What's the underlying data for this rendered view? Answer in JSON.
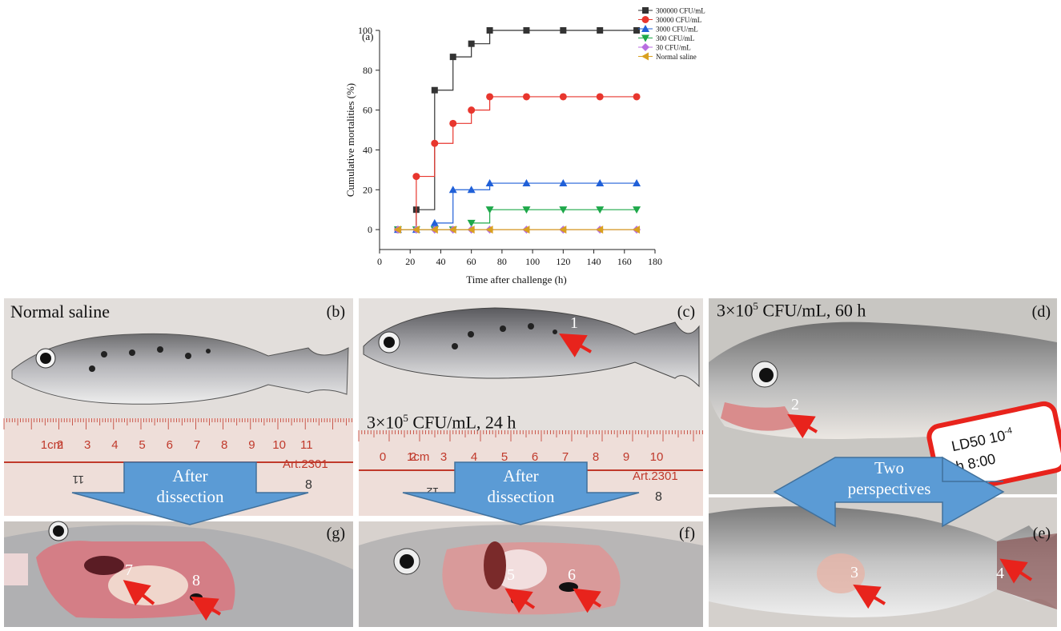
{
  "chart_data": {
    "type": "line",
    "step": true,
    "panel_label": "(a)",
    "xlabel": "Time after challenge (h)",
    "ylabel": "Cumulative mortalities (%)",
    "xlim": [
      0,
      180
    ],
    "ylim": [
      -10,
      100
    ],
    "xticks": [
      0,
      20,
      40,
      60,
      80,
      100,
      120,
      140,
      160,
      180
    ],
    "yticks": [
      0,
      20,
      40,
      60,
      80,
      100
    ],
    "grid": false,
    "legend_position": "top-right",
    "x": [
      12,
      24,
      36,
      48,
      60,
      72,
      96,
      120,
      144,
      168
    ],
    "series": [
      {
        "name": "300000 CFU/mL",
        "color": "#333333",
        "marker": "square",
        "values": [
          0,
          10,
          70,
          86.7,
          93.3,
          100,
          100,
          100,
          100,
          100
        ]
      },
      {
        "name": "30000 CFU/mL",
        "color": "#e8362e",
        "marker": "circle",
        "values": [
          0,
          26.7,
          43.3,
          53.3,
          60,
          66.7,
          66.7,
          66.7,
          66.7,
          66.7
        ]
      },
      {
        "name": "3000 CFU/mL",
        "color": "#2060d8",
        "marker": "triangle-up",
        "values": [
          0,
          0,
          3.3,
          20,
          20,
          23.3,
          23.3,
          23.3,
          23.3,
          23.3
        ]
      },
      {
        "name": "300 CFU/mL",
        "color": "#1ea84a",
        "marker": "triangle-down",
        "values": [
          0,
          0,
          0,
          0,
          3.3,
          10,
          10,
          10,
          10,
          10
        ]
      },
      {
        "name": "30 CFU/mL",
        "color": "#b86ee0",
        "marker": "diamond",
        "values": [
          0,
          0,
          0,
          0,
          0,
          0,
          0,
          0,
          0,
          0
        ]
      },
      {
        "name": "Normal saline",
        "color": "#d9a020",
        "marker": "triangle-left",
        "values": [
          0,
          0,
          0,
          0,
          0,
          0,
          0,
          0,
          0,
          0
        ]
      }
    ]
  },
  "panels": {
    "b": {
      "label": "(b)",
      "caption": "Normal saline"
    },
    "c": {
      "label": "(c)",
      "caption": "3×10",
      "sup": "5",
      "caption_tail": " CFU/mL, 24 h"
    },
    "d": {
      "label": "(d)",
      "caption": "3×10",
      "sup": "5",
      "caption_tail": " CFU/mL, 60 h"
    },
    "e": {
      "label": "(e)"
    },
    "f": {
      "label": "(f)"
    },
    "g": {
      "label": "(g)"
    }
  },
  "arrows": {
    "left": {
      "line1": "After",
      "line2": "dissection"
    },
    "middle": {
      "line1": "After",
      "line2": "dissection"
    },
    "right": {
      "line1": "Two",
      "line2": "perspectives"
    }
  },
  "markers": {
    "m1": "1",
    "m2": "2",
    "m3": "3",
    "m4": "4",
    "m5": "5",
    "m6": "6",
    "m7": "7",
    "m8": "8"
  },
  "ruler": {
    "cm_label": "1cm",
    "numbers_b": [
      "2",
      "3",
      "4",
      "5",
      "6",
      "7",
      "8",
      "9",
      "10",
      "11"
    ],
    "numbers_c": [
      "0",
      "2",
      "3",
      "4",
      "5",
      "6",
      "7",
      "8",
      "9",
      "10"
    ],
    "brand": "Art.2301",
    "bottom_b_left": "11",
    "bottom_b_right": "8",
    "bottom_c_left": "12",
    "bottom_c_right": "8"
  },
  "tag": {
    "line1": "LD50 10",
    "sup": "-4",
    "line2": "h 8:00"
  },
  "colors": {
    "arrow_fill": "#5b9bd5",
    "marker_arrow": "#e8231c",
    "ruler_bg": "#f0e3e0"
  }
}
